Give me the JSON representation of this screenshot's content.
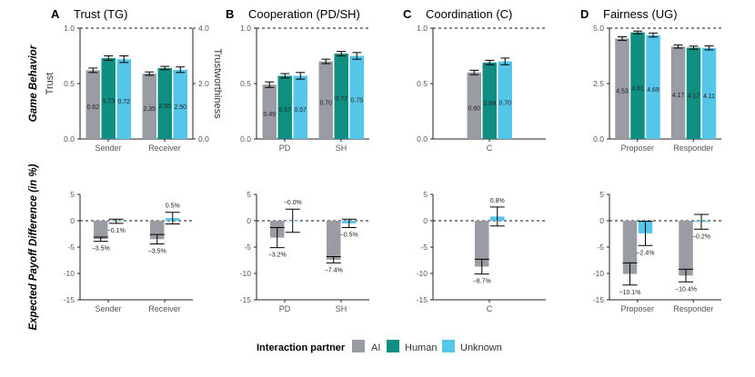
{
  "colors": {
    "ai": "#999ca3",
    "human": "#0f8f82",
    "unknown": "#55c6ea",
    "axis": "#222222",
    "tick_text": "#555555"
  },
  "row_labels": {
    "top": "Game Behavior",
    "bottom": "Expected Payoff Difference (in %)"
  },
  "legend": {
    "title": "Interaction partner",
    "items": [
      {
        "key": "ai",
        "label": "AI"
      },
      {
        "key": "human",
        "label": "Human"
      },
      {
        "key": "unknown",
        "label": "Unknown"
      }
    ]
  },
  "chart_data": [
    {
      "type": "bar",
      "panel": "A",
      "title": "Trust (TG)",
      "row": "top",
      "categories": [
        "Sender",
        "Receiver"
      ],
      "ylabel": "Trust",
      "ylabel_right": "Trustworthiness",
      "ylim": [
        0,
        1
      ],
      "yticks": [
        "0.0",
        "0.5",
        "1.0"
      ],
      "yticks_right": [
        "0.0",
        "2.0",
        "4.0"
      ],
      "reference_line": 1.0,
      "series": [
        {
          "name": "AI",
          "values": [
            0.62,
            0.59
          ],
          "err": [
            0.02,
            0.015
          ],
          "labels": [
            "0.62",
            "2.35"
          ]
        },
        {
          "name": "Human",
          "values": [
            0.73,
            0.64
          ],
          "err": [
            0.02,
            0.015
          ],
          "labels": [
            "0.73",
            "2.55"
          ]
        },
        {
          "name": "Unknown",
          "values": [
            0.72,
            0.625
          ],
          "err": [
            0.03,
            0.025
          ],
          "labels": [
            "0.72",
            "2.50"
          ]
        }
      ]
    },
    {
      "type": "bar",
      "panel": "B",
      "title": "Cooperation (PD/SH)",
      "row": "top",
      "categories": [
        "PD",
        "SH"
      ],
      "ylim": [
        0,
        1
      ],
      "yticks": [
        "0.0",
        "0.5",
        "1.0"
      ],
      "reference_line": 1.0,
      "series": [
        {
          "name": "AI",
          "values": [
            0.49,
            0.7
          ],
          "err": [
            0.025,
            0.02
          ],
          "labels": [
            "0.49",
            "0.70"
          ]
        },
        {
          "name": "Human",
          "values": [
            0.57,
            0.77
          ],
          "err": [
            0.02,
            0.02
          ],
          "labels": [
            "0.57",
            "0.77"
          ]
        },
        {
          "name": "Unknown",
          "values": [
            0.57,
            0.75
          ],
          "err": [
            0.03,
            0.03
          ],
          "labels": [
            "0.57",
            "0.75"
          ]
        }
      ]
    },
    {
      "type": "bar",
      "panel": "C",
      "title": "Coordination (C)",
      "row": "top",
      "categories": [
        "C"
      ],
      "ylim": [
        0,
        1
      ],
      "yticks": [
        "0.0",
        "0.5",
        "1.0"
      ],
      "reference_line": 1.0,
      "series": [
        {
          "name": "AI",
          "values": [
            0.6
          ],
          "err": [
            0.02
          ],
          "labels": [
            "0.60"
          ]
        },
        {
          "name": "Human",
          "values": [
            0.69
          ],
          "err": [
            0.02
          ],
          "labels": [
            "0.69"
          ]
        },
        {
          "name": "Unknown",
          "values": [
            0.7
          ],
          "err": [
            0.03
          ],
          "labels": [
            "0.70"
          ]
        }
      ]
    },
    {
      "type": "bar",
      "panel": "D",
      "title": "Fairness (UG)",
      "row": "top",
      "categories": [
        "Proposer",
        "Responder"
      ],
      "ylim": [
        0,
        5
      ],
      "yticks": [
        "0.0",
        "2.5",
        "5.0"
      ],
      "reference_line": 5.0,
      "series": [
        {
          "name": "AI",
          "values": [
            4.53,
            4.17
          ],
          "err": [
            0.08,
            0.07
          ],
          "labels": [
            "4.53",
            "4.17"
          ]
        },
        {
          "name": "Human",
          "values": [
            4.81,
            4.12
          ],
          "err": [
            0.06,
            0.07
          ],
          "labels": [
            "4.81",
            "4.12"
          ]
        },
        {
          "name": "Unknown",
          "values": [
            4.69,
            4.11
          ],
          "err": [
            0.09,
            0.09
          ],
          "labels": [
            "4.69",
            "4.11"
          ]
        }
      ]
    },
    {
      "type": "bar",
      "panel": "A",
      "row": "bottom",
      "categories": [
        "Sender",
        "Receiver"
      ],
      "ylim": [
        -15,
        5
      ],
      "yticks": [
        "5",
        "0",
        "-5",
        "-10",
        "-15"
      ],
      "reference_line": 0,
      "series": [
        {
          "name": "AI",
          "values": [
            -3.5,
            -3.5
          ],
          "err": [
            0.4,
            0.9
          ],
          "labels": [
            "−3.5%",
            "−3.5%"
          ]
        },
        {
          "name": "Unknown",
          "values": [
            -0.1,
            0.5
          ],
          "err": [
            0.4,
            1.1
          ],
          "labels": [
            "−0.1%",
            "0.5%"
          ]
        }
      ]
    },
    {
      "type": "bar",
      "panel": "B",
      "row": "bottom",
      "categories": [
        "PD",
        "SH"
      ],
      "ylim": [
        -15,
        5
      ],
      "yticks": [
        "5",
        "0",
        "-5",
        "-10",
        "-15"
      ],
      "reference_line": 0,
      "series": [
        {
          "name": "AI",
          "values": [
            -3.2,
            -7.4
          ],
          "err": [
            1.9,
            0.6
          ],
          "labels": [
            "−3.2%",
            "−7.4%"
          ]
        },
        {
          "name": "Unknown",
          "values": [
            -0.0,
            -0.5
          ],
          "err": [
            2.2,
            0.8
          ],
          "labels": [
            "−0.0%",
            "−0.5%"
          ]
        }
      ]
    },
    {
      "type": "bar",
      "panel": "C",
      "row": "bottom",
      "categories": [
        "C"
      ],
      "ylim": [
        -15,
        5
      ],
      "yticks": [
        "5",
        "0",
        "-5",
        "-10",
        "-15"
      ],
      "reference_line": 0,
      "series": [
        {
          "name": "AI",
          "values": [
            -8.7
          ],
          "err": [
            1.4
          ],
          "labels": [
            "−8.7%"
          ]
        },
        {
          "name": "Unknown",
          "values": [
            0.8
          ],
          "err": [
            1.8
          ],
          "labels": [
            "0.8%"
          ]
        }
      ]
    },
    {
      "type": "bar",
      "panel": "D",
      "row": "bottom",
      "categories": [
        "Proposer",
        "Responder"
      ],
      "ylim": [
        -15,
        5
      ],
      "yticks": [
        "5",
        "0",
        "-5",
        "-10",
        "-15"
      ],
      "reference_line": 0,
      "series": [
        {
          "name": "AI",
          "values": [
            -10.1,
            -10.4
          ],
          "err": [
            2.1,
            1.2
          ],
          "labels": [
            "−10.1%",
            "−10.4%"
          ]
        },
        {
          "name": "Unknown",
          "values": [
            -2.4,
            -0.2
          ],
          "err": [
            2.3,
            1.4
          ],
          "labels": [
            "−2.4%",
            "−0.2%"
          ]
        }
      ]
    }
  ]
}
